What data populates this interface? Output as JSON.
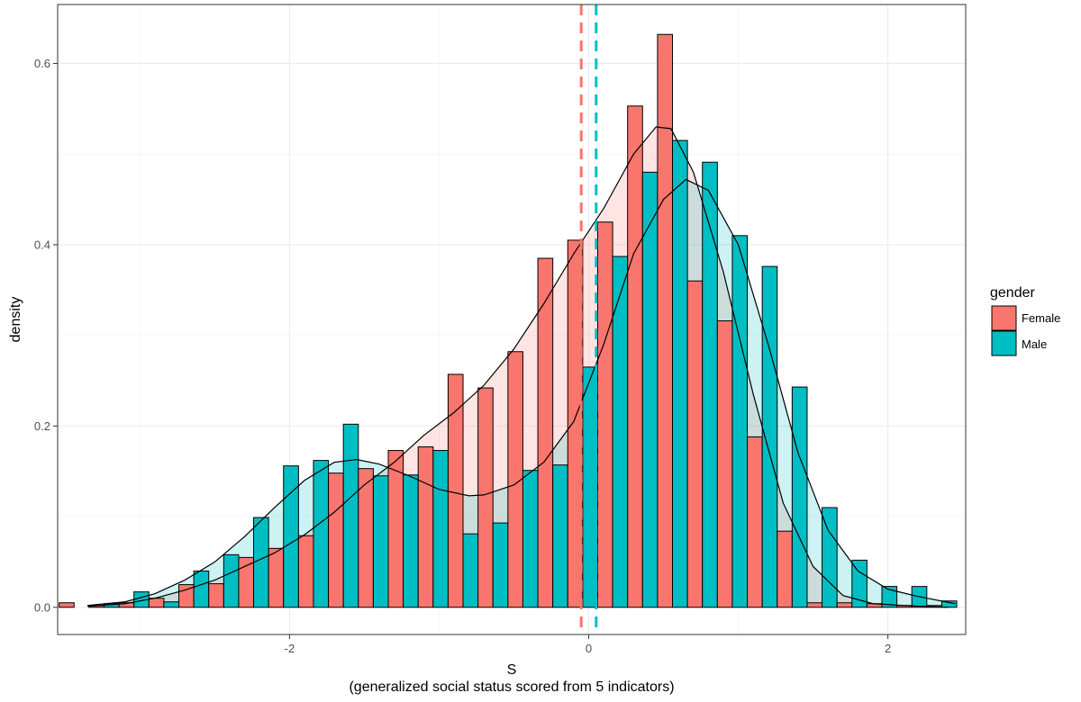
{
  "chart_data": {
    "type": "bar",
    "subtype": "overlaid histogram with density curves",
    "xlabel": "S",
    "xlabel_sub": "(generalized social status scored from 5 indicators)",
    "ylabel": "density",
    "xlim": [
      -3.55,
      2.52
    ],
    "ylim": [
      -0.03,
      0.665
    ],
    "xticks": [
      -2,
      0,
      2
    ],
    "xtick_labels": [
      "-2",
      "0",
      "2"
    ],
    "yticks": [
      0.0,
      0.2,
      0.4,
      0.6
    ],
    "ytick_labels": [
      "0.0",
      "0.2",
      "0.4",
      "0.6"
    ],
    "grid": true,
    "legend": {
      "title": "gender",
      "position": "right"
    },
    "bins": {
      "centers": [
        -3.44,
        -3.24,
        -3.04,
        -2.84,
        -2.64,
        -2.44,
        -2.24,
        -2.04,
        -1.84,
        -1.64,
        -1.44,
        -1.24,
        -1.04,
        -0.84,
        -0.64,
        -0.44,
        -0.24,
        -0.04,
        0.16,
        0.36,
        0.56,
        0.76,
        0.96,
        1.16,
        1.36,
        1.56,
        1.76,
        1.96,
        2.16,
        2.36
      ],
      "width": 0.2
    },
    "series": [
      {
        "name": "Female",
        "color": "#F8766D",
        "fill_alpha": 0.2,
        "values": [
          0.005,
          0.002,
          0.005,
          0.01,
          0.025,
          0.026,
          0.055,
          0.065,
          0.079,
          0.148,
          0.153,
          0.173,
          0.177,
          0.257,
          0.242,
          0.282,
          0.385,
          0.405,
          0.425,
          0.553,
          0.632,
          0.36,
          0.316,
          0.188,
          0.084,
          0.005,
          0.005,
          0.004,
          0.002,
          0.002
        ],
        "mean": -0.05,
        "density_curve": {
          "x": [
            -3.35,
            -3.1,
            -2.9,
            -2.7,
            -2.5,
            -2.3,
            -2.1,
            -1.9,
            -1.7,
            -1.5,
            -1.3,
            -1.1,
            -0.9,
            -0.7,
            -0.5,
            -0.3,
            -0.1,
            0.1,
            0.3,
            0.45,
            0.55,
            0.7,
            0.9,
            1.1,
            1.3,
            1.5,
            1.7,
            1.9,
            2.1,
            2.25,
            2.4
          ],
          "y": [
            0.001,
            0.004,
            0.01,
            0.019,
            0.03,
            0.045,
            0.06,
            0.08,
            0.105,
            0.135,
            0.16,
            0.19,
            0.215,
            0.245,
            0.285,
            0.335,
            0.39,
            0.44,
            0.5,
            0.53,
            0.528,
            0.48,
            0.37,
            0.235,
            0.115,
            0.045,
            0.013,
            0.004,
            0.002,
            0.001,
            0.0
          ]
        }
      },
      {
        "name": "Male",
        "color": "#00BFC4",
        "fill_alpha": 0.2,
        "values": [
          0.0,
          0.004,
          0.017,
          0.006,
          0.04,
          0.058,
          0.099,
          0.156,
          0.162,
          0.202,
          0.145,
          0.146,
          0.173,
          0.081,
          0.093,
          0.151,
          0.157,
          0.265,
          0.387,
          0.48,
          0.515,
          0.491,
          0.41,
          0.376,
          0.243,
          0.11,
          0.052,
          0.023,
          0.023,
          0.007
        ],
        "mean": 0.05,
        "density_curve": {
          "x": [
            -3.35,
            -3.1,
            -2.9,
            -2.7,
            -2.5,
            -2.3,
            -2.1,
            -1.9,
            -1.7,
            -1.55,
            -1.4,
            -1.2,
            -1.0,
            -0.8,
            -0.7,
            -0.5,
            -0.3,
            -0.1,
            0.1,
            0.3,
            0.5,
            0.65,
            0.8,
            1.0,
            1.2,
            1.4,
            1.6,
            1.8,
            2.0,
            2.2,
            2.45
          ],
          "y": [
            0.002,
            0.006,
            0.015,
            0.03,
            0.05,
            0.078,
            0.11,
            0.14,
            0.16,
            0.163,
            0.158,
            0.145,
            0.13,
            0.123,
            0.124,
            0.135,
            0.16,
            0.205,
            0.29,
            0.39,
            0.45,
            0.472,
            0.46,
            0.4,
            0.29,
            0.17,
            0.085,
            0.04,
            0.02,
            0.012,
            0.004
          ]
        }
      }
    ]
  }
}
